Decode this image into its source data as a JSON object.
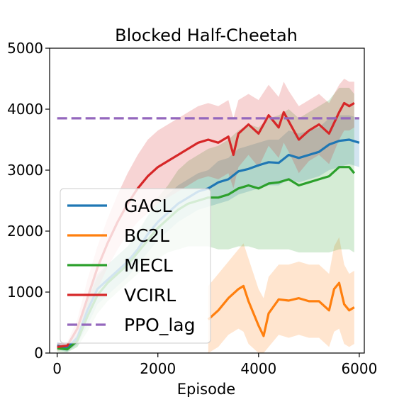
{
  "chart_data": {
    "type": "line",
    "title": "Blocked Half-Cheetah",
    "xlabel": "Episode",
    "ylabel": "",
    "xlim": [
      -150,
      6100
    ],
    "ylim": [
      0,
      5000
    ],
    "xticks": [
      0,
      2000,
      4000,
      6000
    ],
    "yticks": [
      0,
      1000,
      2000,
      3000,
      4000,
      5000
    ],
    "grid": false,
    "legend_position": "lower-left",
    "series": [
      {
        "name": "GACL",
        "color": "#1f77b4",
        "x": [
          0,
          200,
          400,
          600,
          800,
          1000,
          1200,
          1400,
          1600,
          1800,
          2000,
          2200,
          2400,
          2600,
          2800,
          3000,
          3200,
          3400,
          3600,
          3800,
          4000,
          4200,
          4400,
          4600,
          4800,
          5000,
          5200,
          5400,
          5600,
          5800,
          6000
        ],
        "values": [
          120,
          80,
          250,
          700,
          1050,
          1200,
          1350,
          1500,
          1700,
          1950,
          2150,
          2300,
          2450,
          2550,
          2650,
          2700,
          2800,
          2850,
          2980,
          3020,
          3080,
          3130,
          3120,
          3250,
          3200,
          3250,
          3300,
          3420,
          3480,
          3500,
          3450
        ],
        "lower": [
          60,
          20,
          150,
          450,
          800,
          950,
          1100,
          1250,
          1450,
          1650,
          1850,
          2000,
          2150,
          2250,
          2350,
          2400,
          2450,
          2500,
          2600,
          2650,
          2700,
          2750,
          2750,
          2850,
          2800,
          2850,
          2900,
          3000,
          3050,
          3100,
          3050
        ],
        "upper": [
          180,
          140,
          350,
          950,
          1300,
          1450,
          1600,
          1750,
          1950,
          2250,
          2450,
          2600,
          2750,
          2850,
          2950,
          3000,
          3150,
          3200,
          3350,
          3400,
          3450,
          3500,
          3500,
          3650,
          3600,
          3650,
          3700,
          3850,
          3900,
          3900,
          3850
        ]
      },
      {
        "name": "BC2L",
        "color": "#ff7f0e",
        "x": [
          3000,
          3200,
          3400,
          3600,
          3700,
          3800,
          4000,
          4100,
          4200,
          4400,
          4600,
          4800,
          5000,
          5200,
          5400,
          5500,
          5600,
          5700,
          5800,
          5900
        ],
        "values": [
          550,
          700,
          900,
          1050,
          1100,
          850,
          450,
          280,
          650,
          880,
          860,
          900,
          850,
          850,
          700,
          1050,
          1150,
          800,
          700,
          750
        ],
        "lower": [
          0,
          100,
          300,
          400,
          350,
          150,
          0,
          0,
          100,
          300,
          250,
          300,
          250,
          250,
          100,
          350,
          400,
          150,
          100,
          150
        ],
        "upper": [
          1100,
          1300,
          1500,
          1700,
          1800,
          1550,
          1050,
          900,
          1250,
          1450,
          1450,
          1500,
          1450,
          1450,
          1300,
          1750,
          1900,
          1450,
          1300,
          1350
        ]
      },
      {
        "name": "MECL",
        "color": "#2ca02c",
        "x": [
          0,
          200,
          400,
          600,
          800,
          1000,
          1200,
          1400,
          1600,
          1800,
          2000,
          2200,
          2400,
          2600,
          2800,
          3000,
          3200,
          3400,
          3600,
          3800,
          4000,
          4200,
          4400,
          4600,
          4800,
          5000,
          5200,
          5400,
          5600,
          5800,
          5900
        ],
        "values": [
          80,
          60,
          200,
          600,
          950,
          1150,
          1300,
          1450,
          1650,
          1850,
          2050,
          2200,
          2350,
          2450,
          2500,
          2550,
          2550,
          2600,
          2700,
          2750,
          2700,
          2780,
          2800,
          2850,
          2750,
          2800,
          2850,
          2900,
          3050,
          3050,
          2950
        ],
        "lower": [
          20,
          10,
          100,
          350,
          650,
          850,
          1000,
          1150,
          1300,
          1450,
          1550,
          1650,
          1700,
          1750,
          1750,
          1750,
          1700,
          1700,
          1750,
          1750,
          1700,
          1700,
          1700,
          1700,
          1650,
          1650,
          1650,
          1650,
          1700,
          1700,
          1650
        ],
        "upper": [
          140,
          110,
          300,
          850,
          1250,
          1450,
          1600,
          1750,
          2000,
          2250,
          2550,
          2750,
          3000,
          3150,
          3250,
          3350,
          3400,
          3500,
          3650,
          3750,
          3700,
          3850,
          3900,
          4000,
          3850,
          3950,
          4050,
          4150,
          4350,
          4350,
          4250
        ]
      },
      {
        "name": "VCIRL",
        "color": "#d62728",
        "x": [
          0,
          200,
          400,
          600,
          800,
          1000,
          1200,
          1400,
          1600,
          1800,
          2000,
          2200,
          2400,
          2600,
          2800,
          3000,
          3200,
          3400,
          3500,
          3600,
          3800,
          4000,
          4200,
          4400,
          4500,
          4600,
          4800,
          5000,
          5200,
          5400,
          5600,
          5700,
          5800,
          5900
        ],
        "values": [
          100,
          120,
          400,
          900,
          1400,
          1800,
          2150,
          2450,
          2700,
          2900,
          3050,
          3150,
          3250,
          3350,
          3450,
          3500,
          3450,
          3550,
          3250,
          3600,
          3750,
          3600,
          3900,
          3700,
          3950,
          3800,
          3500,
          3650,
          3750,
          3600,
          3950,
          4100,
          4050,
          4100
        ],
        "lower": [
          40,
          60,
          250,
          600,
          1050,
          1400,
          1700,
          1950,
          2150,
          2300,
          2450,
          2550,
          2650,
          2750,
          2850,
          2900,
          2850,
          2950,
          2700,
          3050,
          3250,
          3050,
          3400,
          3200,
          3450,
          3300,
          2950,
          3150,
          3250,
          3100,
          3500,
          3650,
          3650,
          3700
        ],
        "upper": [
          160,
          180,
          550,
          1200,
          1750,
          2200,
          2600,
          2950,
          3250,
          3500,
          3650,
          3750,
          3850,
          3950,
          4050,
          4100,
          4050,
          4150,
          3850,
          4150,
          4250,
          4150,
          4400,
          4200,
          4450,
          4300,
          4050,
          4150,
          4250,
          4100,
          4400,
          4500,
          4450,
          4450
        ]
      },
      {
        "name": "PPO_lag",
        "color": "#9467bd",
        "dashed": true,
        "x": [
          0,
          6000
        ],
        "values": [
          3850,
          3850
        ]
      }
    ]
  }
}
